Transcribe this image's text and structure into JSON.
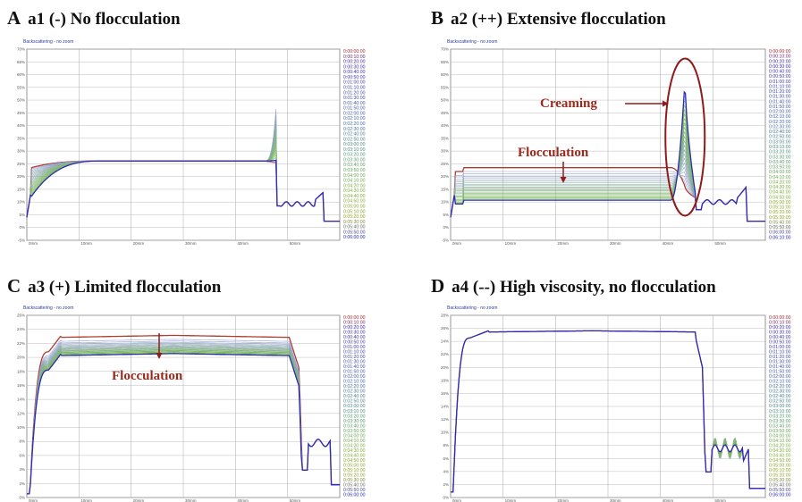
{
  "panels": [
    {
      "letter": "A",
      "title": "a1 (-) No flocculation"
    },
    {
      "letter": "B",
      "title": "a2 (++) Extensive flocculation"
    },
    {
      "letter": "C",
      "title": "a3 (+) Limited flocculation"
    },
    {
      "letter": "D",
      "title": "a4 (--) High viscosity, no flocculation"
    }
  ],
  "chart_data": [
    {
      "type": "line",
      "header": "Backscattering - no zoom",
      "yticks": [
        "70%",
        "65%",
        "60%",
        "55%",
        "50%",
        "45%",
        "40%",
        "35%",
        "30%",
        "25%",
        "20%",
        "15%",
        "10%",
        "5%",
        "0%",
        "-5%"
      ],
      "xticks": [
        "0mm",
        "10mm",
        "20mm",
        "30mm",
        "40mm",
        "50mm"
      ],
      "legend": [
        "0:00:00:00",
        "0:00:10:00",
        "0:00:20:00",
        "0:00:30:00",
        "0:00:40:00",
        "0:00:50:00",
        "0:01:00:00",
        "0:01:10:00",
        "0:01:20:00",
        "0:01:30:00",
        "0:01:40:00",
        "0:01:50:00",
        "0:02:00:00",
        "0:02:10:00",
        "0:02:20:00",
        "0:02:30:00",
        "0:02:40:00",
        "0:02:50:00",
        "0:03:00:00",
        "0:03:10:00",
        "0:03:20:00",
        "0:03:30:00",
        "0:03:40:00",
        "0:03:50:00",
        "0:04:00:00",
        "0:04:10:00",
        "0:04:20:00",
        "0:04:30:00",
        "0:04:40:00",
        "0:04:50:00",
        "0:05:00:00",
        "0:05:10:00",
        "0:05:20:00",
        "0:05:30:00",
        "0:05:40:00",
        "0:05:50:00",
        "0:06:00:00"
      ],
      "annotations": []
    },
    {
      "type": "line",
      "header": "Backscattering - no zoom",
      "yticks": [
        "70%",
        "65%",
        "60%",
        "55%",
        "50%",
        "45%",
        "40%",
        "35%",
        "30%",
        "25%",
        "20%",
        "15%",
        "10%",
        "5%",
        "0%",
        "-5%"
      ],
      "xticks": [
        "0mm",
        "10mm",
        "20mm",
        "30mm",
        "40mm",
        "50mm"
      ],
      "legend": [
        "0:00:00:00",
        "0:00:10:00",
        "0:00:20:00",
        "0:00:30:00",
        "0:00:40:00",
        "0:00:50:00",
        "0:01:00:00",
        "0:01:10:00",
        "0:01:20:00",
        "0:01:30:00",
        "0:01:40:00",
        "0:01:50:00",
        "0:02:00:00",
        "0:02:10:00",
        "0:02:20:00",
        "0:02:30:00",
        "0:02:40:00",
        "0:02:50:00",
        "0:03:00:00",
        "0:03:10:00",
        "0:03:20:00",
        "0:03:30:00",
        "0:03:40:00",
        "0:03:50:00",
        "0:04:00:00",
        "0:04:10:00",
        "0:04:20:00",
        "0:04:30:00",
        "0:04:40:00",
        "0:04:50:00",
        "0:05:00:00",
        "0:05:10:00",
        "0:05:20:00",
        "0:05:30:00",
        "0:05:40:00",
        "0:05:50:00",
        "0:06:00:00",
        "0:06:10:00"
      ],
      "annotations": [
        "Creaming",
        "Flocculation"
      ]
    },
    {
      "type": "line",
      "header": "Backscattering - no zoom",
      "yticks": [
        "26%",
        "24%",
        "22%",
        "20%",
        "18%",
        "16%",
        "14%",
        "12%",
        "10%",
        "8%",
        "6%",
        "4%",
        "2%",
        "0%"
      ],
      "xticks": [
        "0mm",
        "10mm",
        "20mm",
        "30mm",
        "40mm",
        "50mm"
      ],
      "legend": [
        "0:00:00:00",
        "0:00:10:00",
        "0:00:20:00",
        "0:00:30:00",
        "0:00:40:00",
        "0:00:50:00",
        "0:01:00:00",
        "0:01:10:00",
        "0:01:20:00",
        "0:01:30:00",
        "0:01:40:00",
        "0:01:50:00",
        "0:02:00:00",
        "0:02:10:00",
        "0:02:20:00",
        "0:02:30:00",
        "0:02:40:00",
        "0:02:50:00",
        "0:03:00:00",
        "0:03:10:00",
        "0:03:20:00",
        "0:03:30:00",
        "0:03:40:00",
        "0:03:50:00",
        "0:04:00:00",
        "0:04:10:00",
        "0:04:20:00",
        "0:04:30:00",
        "0:04:40:00",
        "0:04:50:00",
        "0:05:00:00",
        "0:05:10:00",
        "0:05:20:00",
        "0:05:30:00",
        "0:05:40:00",
        "0:05:50:00",
        "0:06:00:00"
      ],
      "annotations": [
        "Flocculation"
      ]
    },
    {
      "type": "line",
      "header": "Backscattering - no zoom",
      "yticks": [
        "28%",
        "26%",
        "24%",
        "22%",
        "20%",
        "18%",
        "16%",
        "14%",
        "12%",
        "10%",
        "8%",
        "6%",
        "4%",
        "2%",
        "0%"
      ],
      "xticks": [
        "0mm",
        "10mm",
        "20mm",
        "30mm",
        "40mm",
        "50mm"
      ],
      "legend": [
        "0:00:00:00",
        "0:00:10:00",
        "0:00:20:00",
        "0:00:30:00",
        "0:00:40:00",
        "0:00:50:00",
        "0:01:00:00",
        "0:01:10:00",
        "0:01:20:00",
        "0:01:30:00",
        "0:01:40:00",
        "0:01:50:00",
        "0:02:00:00",
        "0:02:10:00",
        "0:02:20:00",
        "0:02:30:00",
        "0:02:40:00",
        "0:02:50:00",
        "0:03:00:00",
        "0:03:10:00",
        "0:03:20:00",
        "0:03:30:00",
        "0:03:40:00",
        "0:03:50:00",
        "0:04:00:00",
        "0:04:10:00",
        "0:04:20:00",
        "0:04:30:00",
        "0:04:40:00",
        "0:04:50:00",
        "0:05:00:00",
        "0:05:10:00",
        "0:05:20:00",
        "0:05:30:00",
        "0:05:40:00",
        "0:05:50:00",
        "0:06:00:00"
      ],
      "annotations": []
    }
  ]
}
